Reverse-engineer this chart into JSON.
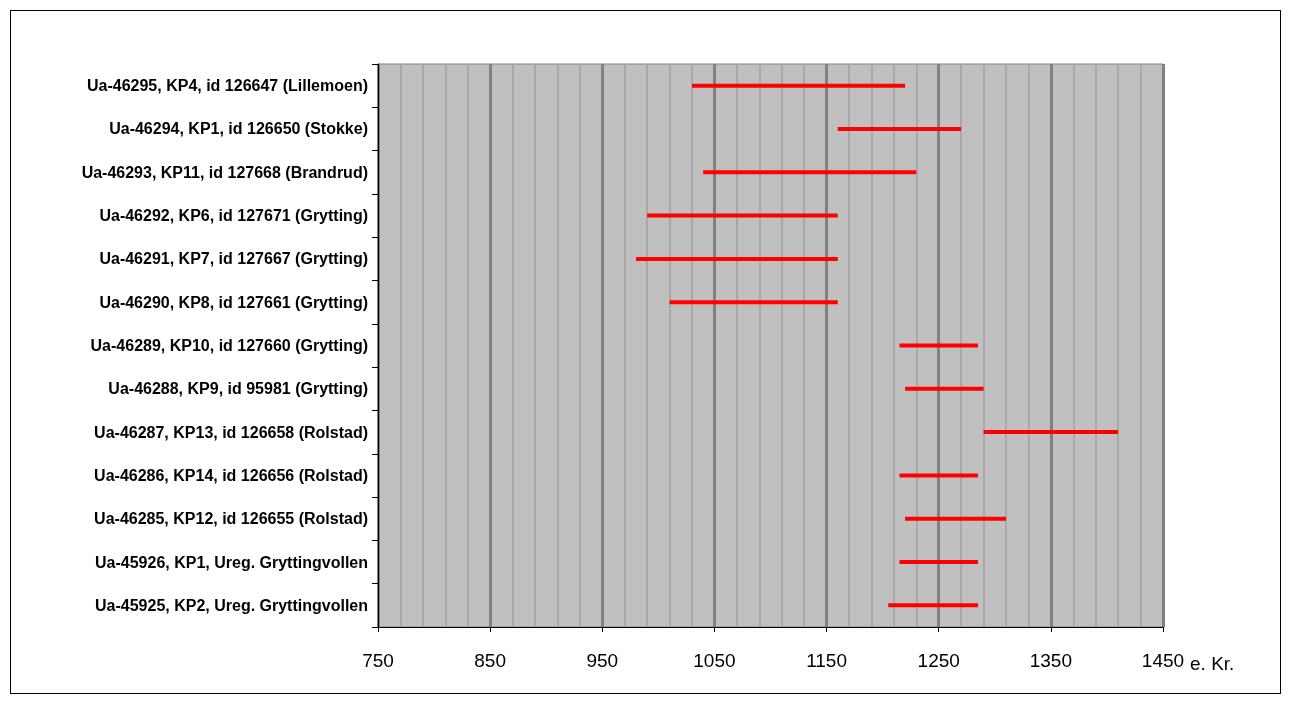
{
  "chart_data": {
    "type": "bar",
    "orientation": "horizontal",
    "xlabel": "e. Kr.",
    "categories": [
      "Ua-46295, KP4, id 126647 (Lillemoen)",
      "Ua-46294, KP1, id 126650 (Stokke)",
      "Ua-46293, KP11, id 127668 (Brandrud)",
      "Ua-46292, KP6, id 127671 (Grytting)",
      "Ua-46291, KP7, id 127667 (Grytting)",
      "Ua-46290, KP8, id 127661 (Grytting)",
      "Ua-46289, KP10, id 127660 (Grytting)",
      "Ua-46288, KP9, id 95981 (Grytting)",
      "Ua-46287, KP13, id 126658 (Rolstad)",
      "Ua-46286, KP14, id 126656 (Rolstad)",
      "Ua-46285, KP12, id 126655 (Rolstad)",
      "Ua-45926, KP1, Ureg. Gryttingvollen",
      "Ua-45925, KP2, Ureg. Gryttingvollen"
    ],
    "base": [
      1030,
      1160,
      1040,
      990,
      980,
      1010,
      1215,
      1220,
      1290,
      1215,
      1220,
      1215,
      1205
    ],
    "values": [
      190,
      110,
      190,
      170,
      180,
      150,
      70,
      70,
      120,
      70,
      90,
      70,
      80
    ],
    "color": "#ff0000",
    "xlim": [
      750,
      1450
    ],
    "xticks": [
      750,
      850,
      950,
      1050,
      1150,
      1250,
      1350,
      1450
    ],
    "grid": "x"
  }
}
